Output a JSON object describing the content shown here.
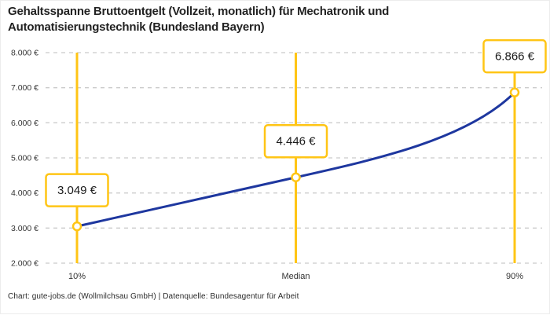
{
  "header": {
    "title": "Gehaltsspanne Bruttoentgelt (Vollzeit, monatlich) für Mechatronik und Automatisierungstechnik (Bundesland Bayern)"
  },
  "footer": {
    "credit": "Chart: gute-jobs.de (Wollmilchsau GmbH) | Datenquelle: Bundesagentur für Arbeit"
  },
  "colors": {
    "accent_yellow": "#FFC515",
    "series_blue": "#1E379F",
    "grid_gray": "#CBCBCB",
    "title_text": "#222222",
    "axis_text": "#333333",
    "label_text": "#1A1A1A",
    "background": "#FFFFFF"
  },
  "chart_data": {
    "type": "line",
    "title": "Gehaltsspanne Bruttoentgelt (Vollzeit, monatlich) für Mechatronik und Automatisierungstechnik (Bundesland Bayern)",
    "categories": [
      "10%",
      "Median",
      "90%"
    ],
    "values": [
      3049,
      4446,
      6866
    ],
    "point_labels": [
      "3.049 €",
      "4.446 €",
      "6.866 €"
    ],
    "yticks": [
      8000,
      7000,
      6000,
      5000,
      4000,
      3000,
      2000
    ],
    "ytick_labels": [
      "8.000 €",
      "7.000 €",
      "6.000 €",
      "5.000 €",
      "4.000 €",
      "3.000 €",
      "2.000 €"
    ],
    "ylim": [
      2000,
      8000
    ],
    "xlabel": "",
    "ylabel": "",
    "grid": "horizontal-dashed",
    "legend": "none",
    "marker": "open-circle-on-vertical-range-line",
    "annotation_style": "boxed value label above each point"
  }
}
